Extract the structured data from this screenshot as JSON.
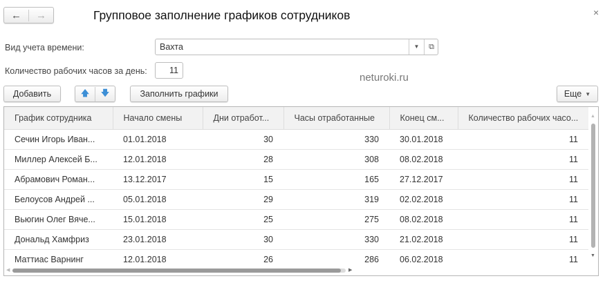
{
  "window": {
    "title": "Групповое заполнение графиков сотрудников",
    "back": "←",
    "forward": "→",
    "close": "×"
  },
  "form": {
    "time_type_label": "Вид учета времени:",
    "time_type_value": "Вахта",
    "hours_label": "Количество рабочих часов за день:",
    "hours_value": "11"
  },
  "watermark": "neturoki.ru",
  "toolbar": {
    "add": "Добавить",
    "up": "🡅",
    "down": "🡇",
    "fill": "Заполнить графики",
    "more": "Еще"
  },
  "table": {
    "columns": [
      "График сотрудника",
      "Начало смены",
      "Дни отработ...",
      "Часы отработанные",
      "Конец см...",
      "Количество рабочих часо..."
    ],
    "rows": [
      [
        "Сечин Игорь Иван...",
        "01.01.2018",
        "30",
        "330",
        "30.01.2018",
        "11"
      ],
      [
        "Миллер Алексей Б...",
        "12.01.2018",
        "28",
        "308",
        "08.02.2018",
        "11"
      ],
      [
        "Абрамович Роман...",
        "13.12.2017",
        "15",
        "165",
        "27.12.2017",
        "11"
      ],
      [
        "Белоусов Андрей ...",
        "05.01.2018",
        "29",
        "319",
        "02.02.2018",
        "11"
      ],
      [
        "Вьюгин Олег Вяче...",
        "15.01.2018",
        "25",
        "275",
        "08.02.2018",
        "11"
      ],
      [
        "Дональд Хамфриз",
        "23.01.2018",
        "30",
        "330",
        "21.02.2018",
        "11"
      ],
      [
        "Маттиас Варнинг",
        "12.01.2018",
        "26",
        "286",
        "06.02.2018",
        "11"
      ]
    ]
  },
  "colors": {
    "accent_arrow": "#3d8fd6"
  }
}
